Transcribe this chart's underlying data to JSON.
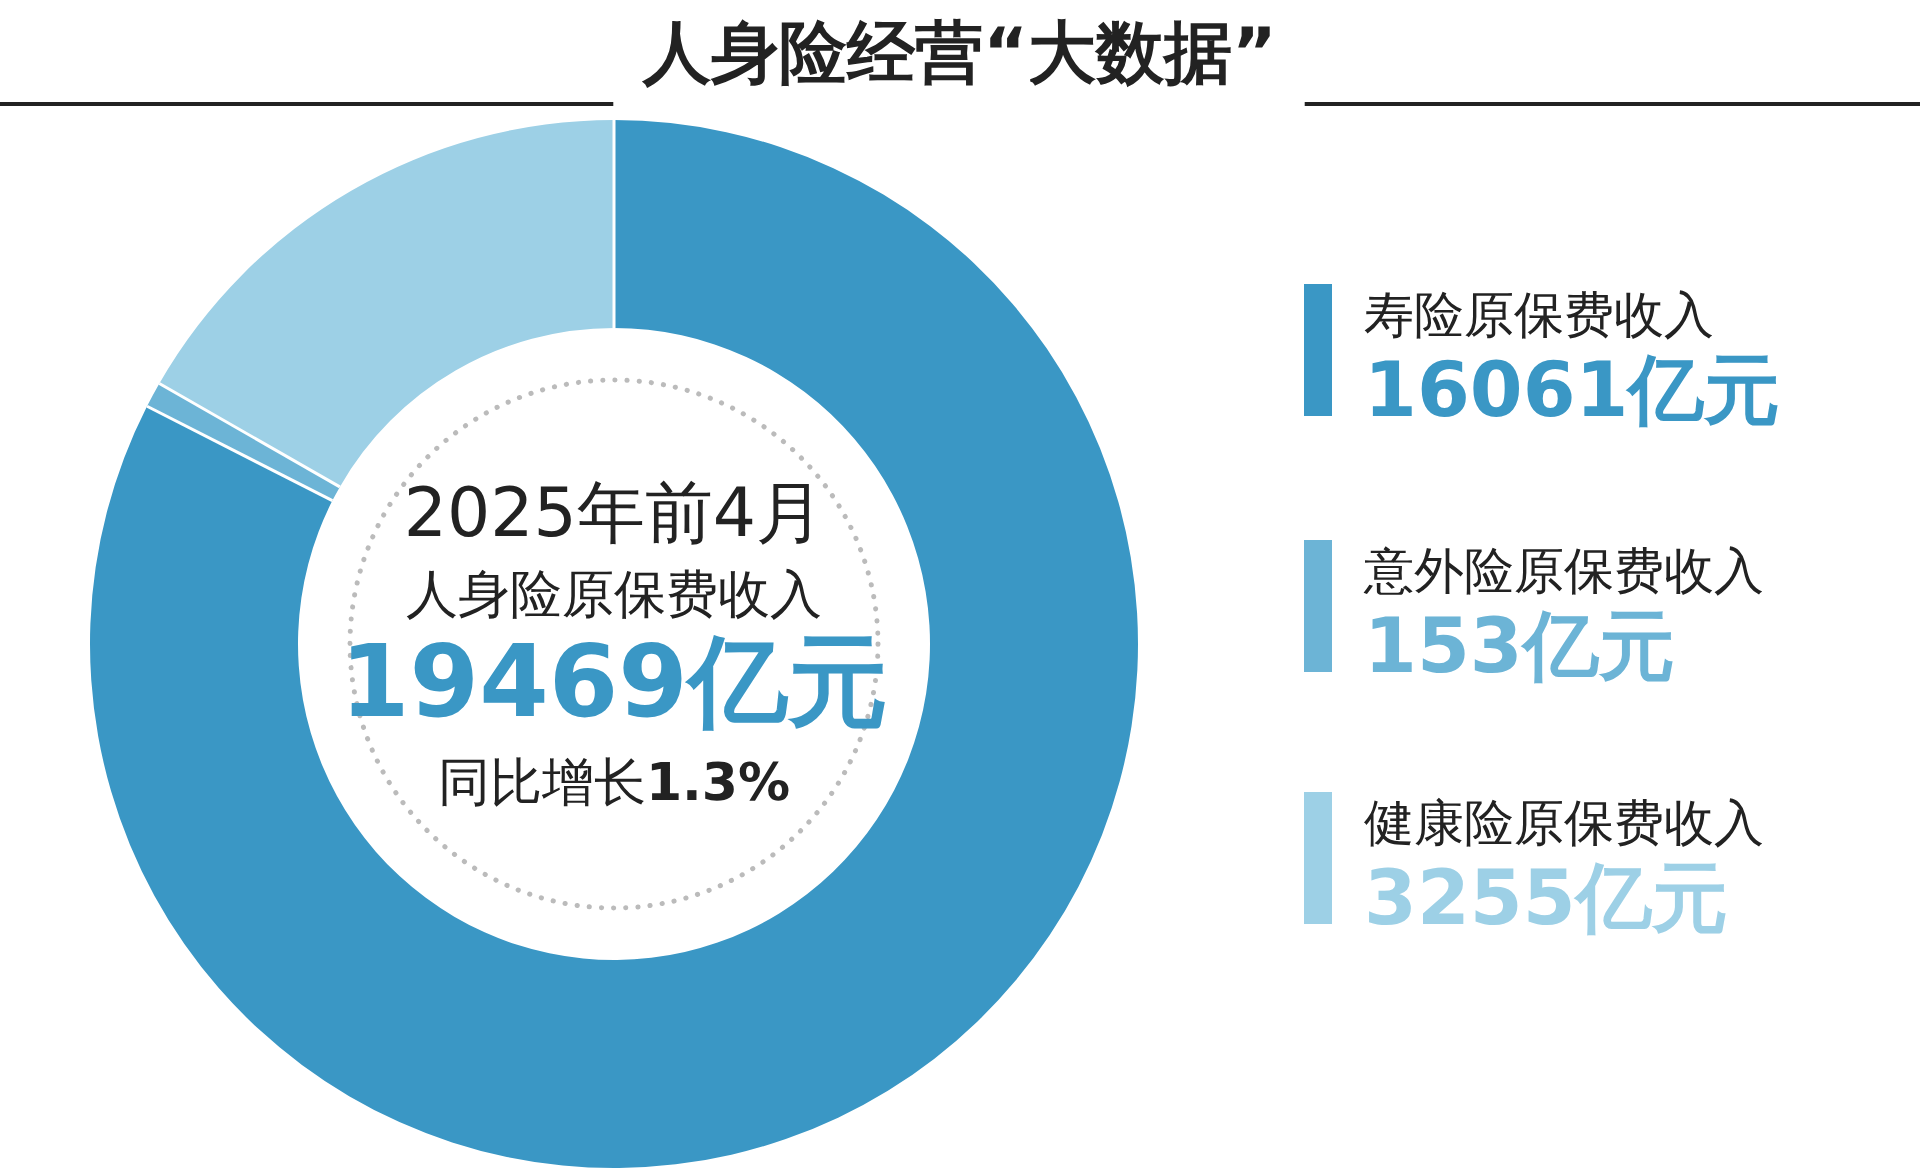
{
  "chart_data": {
    "type": "donut",
    "title": "人身险经营“大数据”",
    "categories": [
      "寿险原保费收入",
      "意外险原保费收入",
      "健康险原保费收入"
    ],
    "values": [
      16061,
      153,
      3255
    ],
    "value_labels": [
      "16061亿元",
      "153亿元",
      "3255亿元"
    ],
    "colors": [
      "#3a97c5",
      "#6cb4d6",
      "#9dd0e6"
    ],
    "legend": "right",
    "annotations": [
      "2025年前4月",
      "人身险原保费收入",
      "19469亿元",
      "同比增长**1.3%**"
    ]
  }
}
